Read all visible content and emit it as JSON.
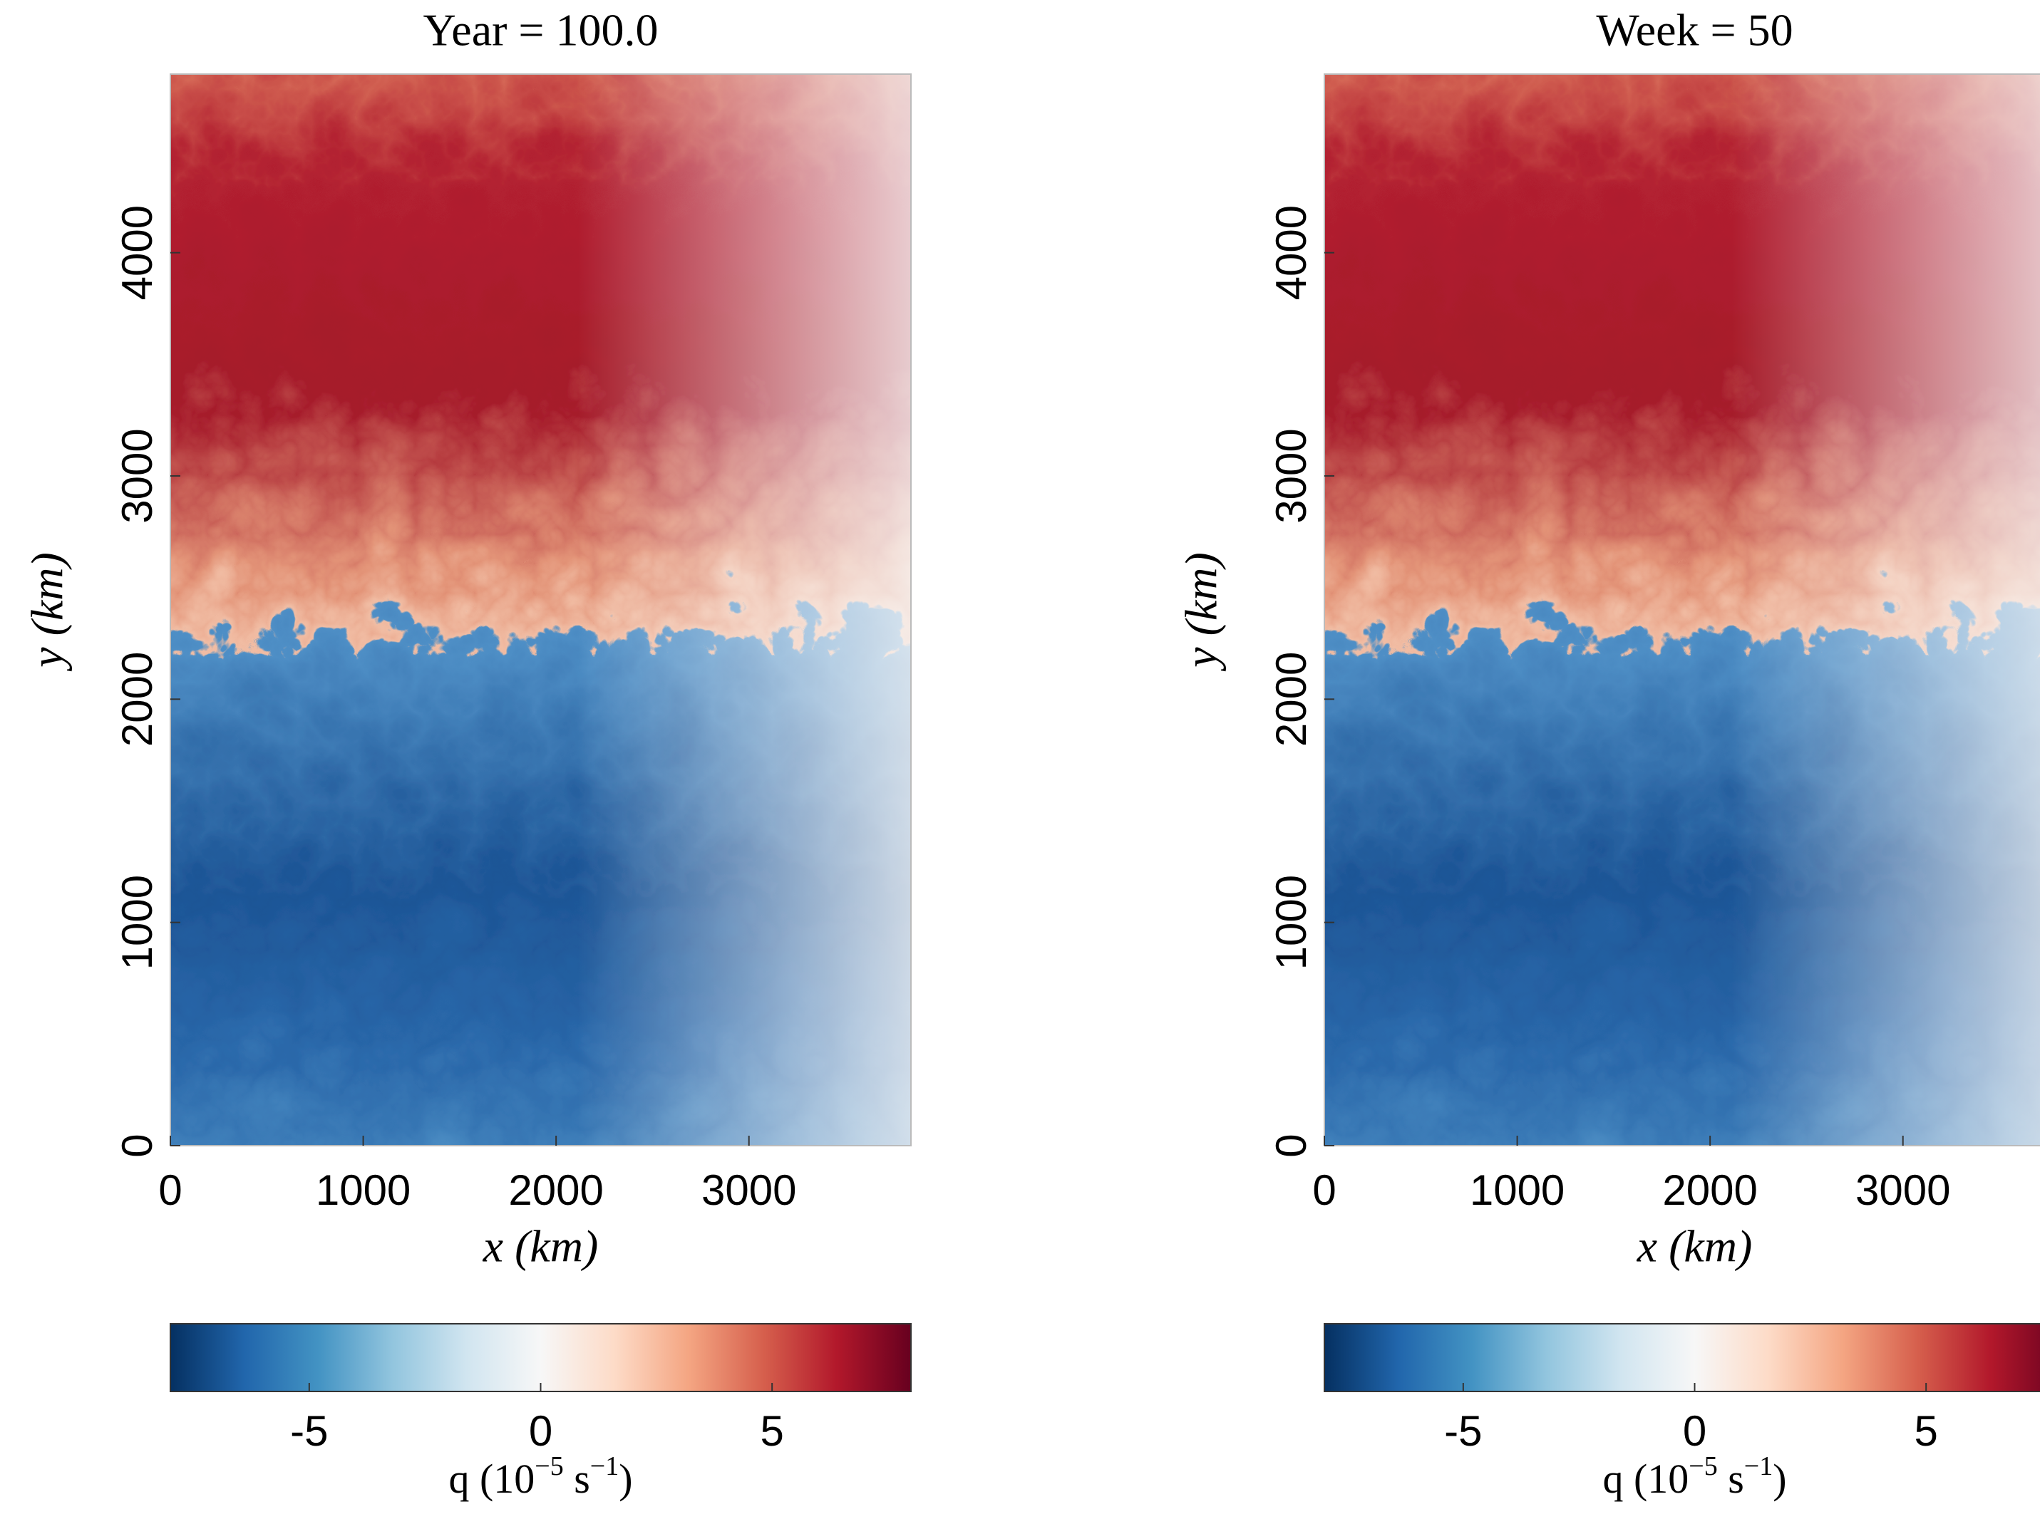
{
  "chart_data": [
    {
      "type": "heatmap",
      "title": "Year = 100.0",
      "x_label": "x (km)",
      "y_label": "y (km)",
      "xlim": [
        0,
        3840
      ],
      "ylim": [
        0,
        4800
      ],
      "xticks": [
        0,
        1000,
        2000,
        3000
      ],
      "yticks": [
        0,
        1000,
        2000,
        3000,
        4000
      ],
      "colorbar": {
        "label_parts": [
          "q (10",
          "−5",
          " s",
          "−1",
          ")"
        ],
        "lim": [
          -8,
          8
        ],
        "ticks": [
          -5,
          0,
          5
        ],
        "colormap": [
          "#053061",
          "#2166ac",
          "#4393c3",
          "#92c5de",
          "#d1e5f0",
          "#f7f7f7",
          "#fddbc7",
          "#f4a582",
          "#d6604d",
          "#b2182b",
          "#67001f"
        ]
      }
    },
    {
      "type": "heatmap",
      "title": "Week = 50",
      "x_label": "x (km)",
      "y_label": "y (km)",
      "xlim": [
        0,
        3840
      ],
      "ylim": [
        0,
        4800
      ],
      "xticks": [
        0,
        1000,
        2000,
        3000
      ],
      "yticks": [
        0,
        1000,
        2000,
        3000,
        4000
      ],
      "colorbar": {
        "label_parts": [
          "q (10",
          "−5",
          " s",
          "−1",
          ")"
        ],
        "lim": [
          -8,
          8
        ],
        "ticks": [
          -5,
          0,
          5
        ],
        "colormap": [
          "#053061",
          "#2166ac",
          "#4393c3",
          "#92c5de",
          "#d1e5f0",
          "#f7f7f7",
          "#fddbc7",
          "#f4a582",
          "#d6604d",
          "#b2182b",
          "#67001f"
        ]
      }
    }
  ]
}
